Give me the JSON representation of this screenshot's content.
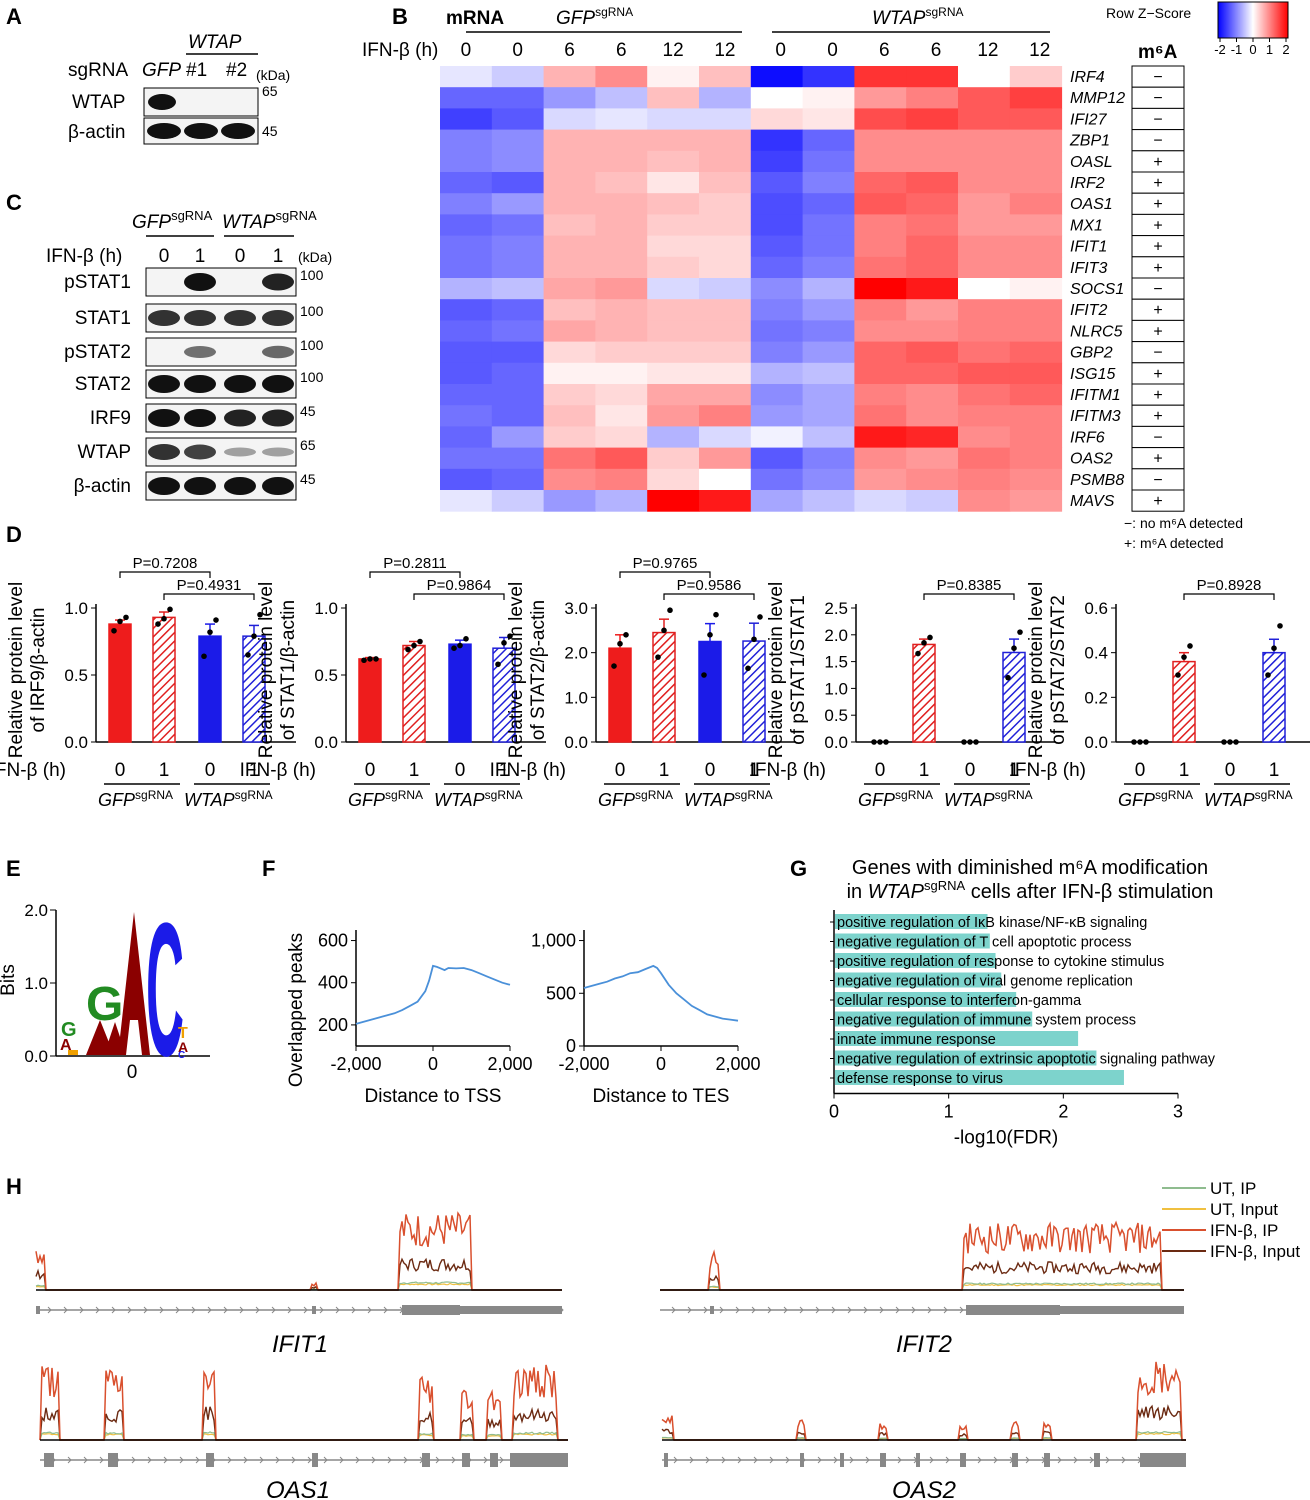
{
  "colors": {
    "red": "#ee1c1c",
    "blue": "#1b1be8",
    "hatch_red": "#e02020",
    "hatch_blue": "#2020d8",
    "teal": "#7dd3cc",
    "line_blue": "#4a90d9",
    "gel_bg": "#f4f4f4",
    "band": "#111111",
    "ut_ip": "#8fbc8f",
    "ut_input": "#f0c040",
    "ifn_ip": "#d9502e",
    "ifn_input": "#6b2a12",
    "gene_model": "#888888"
  },
  "panels": {
    "A": "A",
    "B": "B",
    "C": "C",
    "D": "D",
    "E": "E",
    "F": "F",
    "G": "G",
    "H": "H"
  },
  "panelA": {
    "wtap_header": "WTAP",
    "sgrna": "sgRNA",
    "gfp": "GFP",
    "lane1": "#1",
    "lane2": "#2",
    "kda": "(kDa)",
    "rows": [
      {
        "label": "WTAP",
        "marker": "65"
      },
      {
        "label": "β-actin",
        "marker": "45"
      }
    ]
  },
  "panelB": {
    "mrna": "mRNA",
    "ifn_label": "IFN-β (h)",
    "group1": "GFP",
    "group2": "WTAP",
    "sup": "sgRNA",
    "legend_title": "Row Z−Score",
    "legend_ticks": [
      "-2",
      "-1",
      "0",
      "1",
      "2"
    ],
    "m6a_header": "m⁶A",
    "timepoints": [
      "0",
      "0",
      "6",
      "6",
      "12",
      "12",
      "0",
      "0",
      "6",
      "6",
      "12",
      "12"
    ],
    "genes": [
      "IRF4",
      "MMP12",
      "IFI27",
      "ZBP1",
      "OASL",
      "IRF2",
      "OAS1",
      "MX1",
      "IFIT1",
      "IFIT3",
      "SOCS1",
      "IFIT2",
      "NLRC5",
      "GBP2",
      "ISG15",
      "IFITM1",
      "IFITM3",
      "IRF6",
      "OAS2",
      "PSMB8",
      "MAVS"
    ],
    "m6a": [
      "−",
      "−",
      "−",
      "−",
      "+",
      "+",
      "+",
      "+",
      "+",
      "+",
      "−",
      "+",
      "+",
      "−",
      "+",
      "+",
      "+",
      "−",
      "+",
      "−",
      "+"
    ],
    "z": [
      [
        -0.2,
        -0.4,
        0.6,
        0.9,
        0.1,
        0.5,
        -1.9,
        -1.6,
        1.6,
        1.6,
        0.0,
        0.4
      ],
      [
        -1.2,
        -1.2,
        -0.8,
        -0.5,
        0.5,
        -0.6,
        0.0,
        0.1,
        0.8,
        1.0,
        1.3,
        1.5
      ],
      [
        -1.5,
        -1.3,
        -0.3,
        -0.2,
        -0.3,
        -0.3,
        0.3,
        0.2,
        1.4,
        1.5,
        1.3,
        1.3
      ],
      [
        -1.0,
        -0.9,
        0.6,
        0.6,
        0.6,
        0.6,
        -1.6,
        -1.2,
        0.9,
        0.9,
        0.9,
        0.9
      ],
      [
        -1.0,
        -0.9,
        0.6,
        0.6,
        0.5,
        0.6,
        -1.5,
        -1.1,
        0.9,
        0.9,
        0.9,
        0.9
      ],
      [
        -1.2,
        -1.3,
        0.6,
        0.5,
        0.2,
        0.5,
        -1.3,
        -1.0,
        1.2,
        1.3,
        0.9,
        0.9
      ],
      [
        -1.0,
        -0.8,
        0.6,
        0.6,
        0.5,
        0.4,
        -1.4,
        -1.2,
        1.3,
        1.2,
        0.8,
        1.0
      ],
      [
        -1.2,
        -1.1,
        0.5,
        0.6,
        0.4,
        0.4,
        -1.4,
        -1.1,
        1.0,
        1.1,
        0.8,
        0.8
      ],
      [
        -1.1,
        -1.0,
        0.6,
        0.6,
        0.3,
        0.3,
        -1.3,
        -1.1,
        1.0,
        1.2,
        0.9,
        0.9
      ],
      [
        -1.1,
        -1.0,
        0.6,
        0.6,
        0.4,
        0.3,
        -1.2,
        -1.0,
        1.1,
        1.2,
        0.9,
        0.9
      ],
      [
        -0.6,
        -0.5,
        0.7,
        0.8,
        -0.3,
        -0.4,
        -0.9,
        -0.6,
        2.0,
        1.8,
        0.0,
        0.1
      ],
      [
        -1.3,
        -1.2,
        0.5,
        0.6,
        0.5,
        0.5,
        -1.0,
        -0.8,
        1.0,
        0.8,
        1.0,
        1.0
      ],
      [
        -1.2,
        -1.1,
        0.7,
        0.6,
        0.5,
        0.5,
        -1.1,
        -1.0,
        0.9,
        0.9,
        1.0,
        1.0
      ],
      [
        -1.3,
        -1.3,
        0.3,
        0.4,
        0.4,
        0.4,
        -1.0,
        -0.8,
        1.2,
        1.3,
        1.1,
        1.2
      ],
      [
        -1.3,
        -1.2,
        0.1,
        0.1,
        0.2,
        0.2,
        -0.6,
        -0.5,
        1.2,
        1.2,
        1.3,
        1.3
      ],
      [
        -1.2,
        -1.2,
        0.4,
        0.3,
        0.7,
        0.7,
        -0.9,
        -0.7,
        1.0,
        0.9,
        1.1,
        1.2
      ],
      [
        -1.1,
        -1.2,
        0.5,
        0.2,
        0.8,
        1.0,
        -0.8,
        -0.7,
        1.1,
        0.9,
        1.0,
        1.0
      ],
      [
        -1.2,
        -0.8,
        0.4,
        0.3,
        -0.6,
        -0.3,
        -0.1,
        -0.5,
        1.8,
        1.7,
        0.9,
        1.0
      ],
      [
        -1.1,
        -1.1,
        1.1,
        1.3,
        0.4,
        0.8,
        -1.3,
        -1.0,
        0.9,
        0.8,
        1.1,
        1.0
      ],
      [
        -1.3,
        -1.2,
        0.9,
        1.0,
        0.3,
        0.0,
        -1.1,
        -0.9,
        0.8,
        0.9,
        1.0,
        0.9
      ],
      [
        -0.2,
        -0.4,
        -0.8,
        -0.6,
        2.0,
        1.8,
        -0.7,
        -0.5,
        -0.3,
        -0.4,
        0.9,
        0.8
      ]
    ],
    "legend_minus": "−: no m⁶A detected",
    "legend_plus": "+: m⁶A detected"
  },
  "panelC": {
    "group1": "GFP",
    "group2": "WTAP",
    "sup": "sgRNA",
    "ifn_label": "IFN-β (h)",
    "lanes": [
      "0",
      "1",
      "0",
      "1"
    ],
    "kda": "(kDa)",
    "rows": [
      {
        "label": "pSTAT1",
        "marker": "100"
      },
      {
        "label": "STAT1",
        "marker": "100"
      },
      {
        "label": "pSTAT2",
        "marker": "100"
      },
      {
        "label": "STAT2",
        "marker": "100"
      },
      {
        "label": "IRF9",
        "marker": "45"
      },
      {
        "label": "WTAP",
        "marker": "65"
      },
      {
        "label": "β-actin",
        "marker": "45"
      }
    ]
  },
  "panelD": {
    "ifn_label": "IFN-β (h)",
    "group1": "GFP",
    "group2": "WTAP",
    "sup": "sgRNA",
    "charts": [
      {
        "ylabel": [
          "Relative protein level",
          "of IRF9/β-actin"
        ],
        "ymax": 1.0,
        "ticks": [
          "0.0",
          "0.5",
          "1.0"
        ],
        "means": [
          0.88,
          0.93,
          0.79,
          0.79
        ],
        "errors": [
          0.03,
          0.04,
          0.09,
          0.08
        ],
        "points": [
          [
            0.83,
            0.9,
            0.93
          ],
          [
            0.88,
            0.92,
            0.99
          ],
          [
            0.64,
            0.82,
            0.91
          ],
          [
            0.65,
            0.79,
            0.95
          ]
        ],
        "pvals": [
          {
            "label": "P=0.7208",
            "from": 0,
            "to": 2,
            "level": 1
          },
          {
            "label": "P=0.4931",
            "from": 1,
            "to": 3,
            "level": 0
          }
        ]
      },
      {
        "ylabel": [
          "Relative protein level",
          "of STAT1/β-actin"
        ],
        "ymax": 1.0,
        "ticks": [
          "0.0",
          "0.5",
          "1.0"
        ],
        "means": [
          0.62,
          0.72,
          0.73,
          0.7
        ],
        "errors": [
          0.01,
          0.03,
          0.03,
          0.08
        ],
        "points": [
          [
            0.61,
            0.62,
            0.62
          ],
          [
            0.69,
            0.72,
            0.75
          ],
          [
            0.7,
            0.72,
            0.77
          ],
          [
            0.58,
            0.74,
            0.79
          ]
        ],
        "pvals": [
          {
            "label": "P=0.2811",
            "from": 0,
            "to": 2,
            "level": 1
          },
          {
            "label": "P=0.9864",
            "from": 1,
            "to": 3,
            "level": 0
          }
        ]
      },
      {
        "ylabel": [
          "Relative protein level",
          "of STAT2/β-actin"
        ],
        "ymax": 3.0,
        "ticks": [
          "0.0",
          "1.0",
          "2.0",
          "3.0"
        ],
        "means": [
          2.1,
          2.45,
          2.25,
          2.26
        ],
        "errors": [
          0.3,
          0.3,
          0.4,
          0.4
        ],
        "points": [
          [
            1.7,
            2.2,
            2.4
          ],
          [
            1.9,
            2.5,
            2.95
          ],
          [
            1.5,
            2.4,
            2.85
          ],
          [
            1.65,
            2.3,
            2.8
          ]
        ],
        "pvals": [
          {
            "label": "P=0.9765",
            "from": 0,
            "to": 2,
            "level": 1
          },
          {
            "label": "P=0.9586",
            "from": 1,
            "to": 3,
            "level": 0
          }
        ]
      },
      {
        "ylabel": [
          "Relative protein level",
          "of pSTAT1/STAT1"
        ],
        "ymax": 2.5,
        "ticks": [
          "0.0",
          "0.5",
          "1.0",
          "1.5",
          "2.0",
          "2.5"
        ],
        "means": [
          0.0,
          1.82,
          0.0,
          1.67
        ],
        "errors": [
          0.0,
          0.1,
          0.0,
          0.25
        ],
        "points": [
          [
            0.0,
            0.0,
            0.0
          ],
          [
            1.65,
            1.85,
            1.95
          ],
          [
            0.0,
            0.0,
            0.0
          ],
          [
            1.2,
            1.75,
            2.05
          ]
        ],
        "pvals": [
          {
            "label": "P=0.8385",
            "from": 1,
            "to": 3,
            "level": 0
          }
        ]
      },
      {
        "ylabel": [
          "Relative protein level",
          "of pSTAT2/STAT2"
        ],
        "ymax": 0.6,
        "ticks": [
          "0.0",
          "0.2",
          "0.4",
          "0.6"
        ],
        "means": [
          0.0,
          0.36,
          0.0,
          0.4
        ],
        "errors": [
          0.0,
          0.04,
          0.0,
          0.06
        ],
        "points": [
          [
            0.0,
            0.0,
            0.0
          ],
          [
            0.3,
            0.38,
            0.43
          ],
          [
            0.0,
            0.0,
            0.0
          ],
          [
            0.3,
            0.42,
            0.52
          ]
        ],
        "pvals": [
          {
            "label": "P=0.8928",
            "from": 1,
            "to": 3,
            "level": 0
          }
        ]
      }
    ]
  },
  "panelE": {
    "ylabel": "Bits",
    "ticks": [
      "0.0",
      "1.0",
      "2.0"
    ],
    "xlabel": "0"
  },
  "panelF": {
    "ylabel": "Overlapped peaks",
    "tss": {
      "xlabel": "Distance to TSS",
      "xticks": [
        "-2,000",
        "0",
        "2,000"
      ],
      "yticks": [
        "200",
        "400",
        "600"
      ],
      "x": [
        -2000,
        -1800,
        -1600,
        -1400,
        -1200,
        -1000,
        -800,
        -600,
        -400,
        -200,
        -100,
        0,
        100,
        200,
        300,
        400,
        600,
        800,
        1000,
        1200,
        1400,
        1600,
        1800,
        2000
      ],
      "y": [
        205,
        215,
        225,
        235,
        245,
        255,
        270,
        290,
        310,
        360,
        410,
        480,
        475,
        468,
        460,
        470,
        468,
        470,
        460,
        445,
        430,
        415,
        400,
        390
      ]
    },
    "tes": {
      "xlabel": "Distance to TES",
      "xticks": [
        "-2,000",
        "0",
        "2,000"
      ],
      "yticks": [
        "0",
        "500",
        "1,000"
      ],
      "x": [
        -2000,
        -1800,
        -1600,
        -1400,
        -1200,
        -1000,
        -800,
        -600,
        -400,
        -200,
        -100,
        0,
        200,
        400,
        600,
        800,
        1000,
        1200,
        1400,
        1600,
        1800,
        2000
      ],
      "y": [
        550,
        570,
        590,
        610,
        640,
        660,
        690,
        700,
        730,
        760,
        740,
        690,
        580,
        500,
        440,
        380,
        340,
        300,
        280,
        260,
        250,
        240
      ]
    }
  },
  "panelG": {
    "title1": "Genes with diminished m⁶A modification",
    "title2_pre": "in ",
    "title2_gene": "WTAP",
    "title2_sup": "sgRNA",
    "title2_post": " cells after IFN-β stimulation",
    "xlabel": "-log10(FDR)",
    "xticks": [
      "0",
      "1",
      "2",
      "3"
    ],
    "chart_data": {
      "type": "bar",
      "categories": [
        "positive regulation of IκB kinase/NF-κB signaling",
        "negative regulation of T cell apoptotic process",
        "positive regulation of response to cytokine stimulus",
        "negative regulation of viral genome replication",
        "cellular response to interferon-gamma",
        "negative regulation of immune system process",
        "innate immune response",
        "negative regulation of extrinsic apoptotic signaling pathway",
        "defense response to virus"
      ],
      "values": [
        1.33,
        1.35,
        1.4,
        1.45,
        1.58,
        1.72,
        2.12,
        2.28,
        2.52
      ],
      "xlim": [
        0,
        3
      ]
    }
  },
  "panelH": {
    "legend": [
      {
        "label": "UT, IP",
        "key": "ut_ip"
      },
      {
        "label": "UT, Input",
        "key": "ut_input"
      },
      {
        "label": "IFN-β, IP",
        "key": "ifn_ip"
      },
      {
        "label": "IFN-β, Input",
        "key": "ifn_input"
      }
    ],
    "genes": [
      "IFIT1",
      "IFIT2",
      "OAS1",
      "OAS2"
    ]
  }
}
